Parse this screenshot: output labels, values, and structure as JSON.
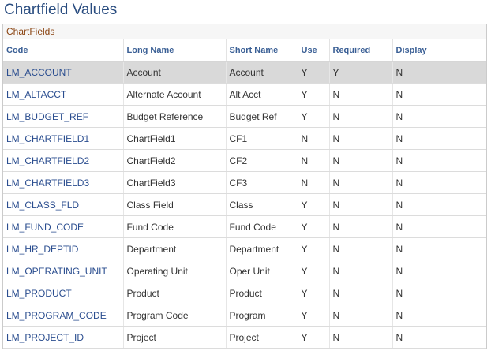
{
  "page": {
    "title": "Chartfield Values"
  },
  "grid": {
    "caption": "ChartFields",
    "columns": [
      "Code",
      "Long Name",
      "Short Name",
      "Use",
      "Required",
      "Display"
    ],
    "rows": [
      {
        "code": "LM_ACCOUNT",
        "long_name": "Account",
        "short_name": "Account",
        "use": "Y",
        "required": "Y",
        "display": "N"
      },
      {
        "code": "LM_ALTACCT",
        "long_name": "Alternate Account",
        "short_name": "Alt Acct",
        "use": "Y",
        "required": "N",
        "display": "N"
      },
      {
        "code": "LM_BUDGET_REF",
        "long_name": "Budget Reference",
        "short_name": "Budget Ref",
        "use": "Y",
        "required": "N",
        "display": "N"
      },
      {
        "code": "LM_CHARTFIELD1",
        "long_name": "ChartField1",
        "short_name": "CF1",
        "use": "N",
        "required": "N",
        "display": "N"
      },
      {
        "code": "LM_CHARTFIELD2",
        "long_name": "ChartField2",
        "short_name": "CF2",
        "use": "N",
        "required": "N",
        "display": "N"
      },
      {
        "code": "LM_CHARTFIELD3",
        "long_name": "ChartField3",
        "short_name": "CF3",
        "use": "N",
        "required": "N",
        "display": "N"
      },
      {
        "code": "LM_CLASS_FLD",
        "long_name": "Class Field",
        "short_name": "Class",
        "use": "Y",
        "required": "N",
        "display": "N"
      },
      {
        "code": "LM_FUND_CODE",
        "long_name": "Fund Code",
        "short_name": "Fund Code",
        "use": "Y",
        "required": "N",
        "display": "N"
      },
      {
        "code": "LM_HR_DEPTID",
        "long_name": "Department",
        "short_name": "Department",
        "use": "Y",
        "required": "N",
        "display": "N"
      },
      {
        "code": "LM_OPERATING_UNIT",
        "long_name": "Operating Unit",
        "short_name": "Oper Unit",
        "use": "Y",
        "required": "N",
        "display": "N"
      },
      {
        "code": "LM_PRODUCT",
        "long_name": "Product",
        "short_name": "Product",
        "use": "Y",
        "required": "N",
        "display": "N"
      },
      {
        "code": "LM_PROGRAM_CODE",
        "long_name": "Program Code",
        "short_name": "Program",
        "use": "Y",
        "required": "N",
        "display": "N"
      },
      {
        "code": "LM_PROJECT_ID",
        "long_name": "Project",
        "short_name": "Project",
        "use": "Y",
        "required": "N",
        "display": "N"
      }
    ]
  }
}
